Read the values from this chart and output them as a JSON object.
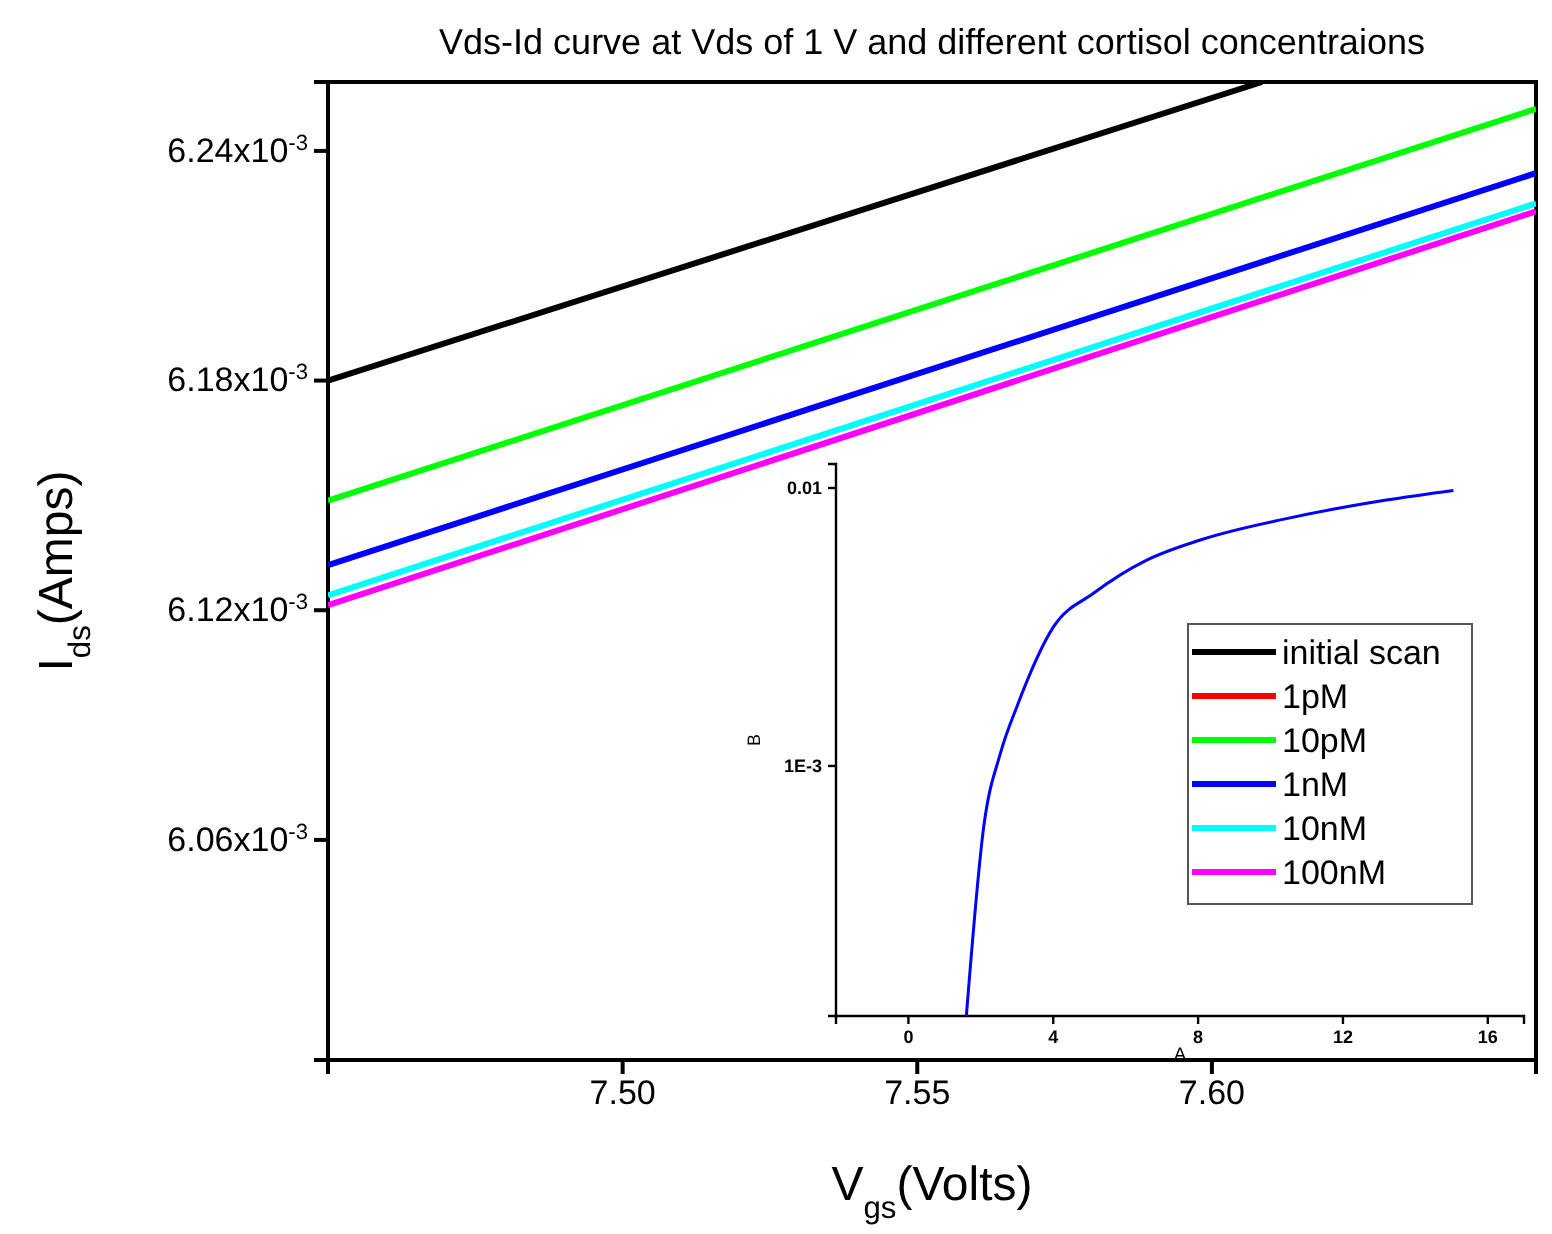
{
  "chart_data": [
    {
      "type": "line",
      "title": "Vds-Id curve at Vds of 1 V and different cortisol concentraions",
      "xlabel": "V$_{gs}$(Volts)",
      "ylabel": "I$_{ds}$(Amps)",
      "x": [
        7.45,
        7.655
      ],
      "xlim": [
        7.45,
        7.655
      ],
      "xticks": [
        {
          "value": 7.5,
          "label": "7.50"
        },
        {
          "value": 7.55,
          "label": "7.55"
        },
        {
          "value": 7.6,
          "label": "7.60"
        }
      ],
      "ylim": [
        0.0060025,
        0.006258
      ],
      "yticks": [
        {
          "value": 0.00606,
          "label": "6.06x10$^{-3}$"
        },
        {
          "value": 0.00612,
          "label": "6.12x10$^{-3}$"
        },
        {
          "value": 0.00618,
          "label": "6.18x10$^{-3}$"
        },
        {
          "value": 0.00624,
          "label": "6.24x10$^{-3}$"
        }
      ],
      "grid": false,
      "legend": false,
      "series": [
        {
          "color": "#000000",
          "x": [
            7.45,
            7.6085
          ],
          "values": [
            0.00618,
            0.006258
          ]
        },
        {
          "color": "#00ff00",
          "values": [
            0.0061486,
            0.006251
          ]
        },
        {
          "color": "#0000ff",
          "values": [
            0.0061318,
            0.0062342
          ]
        },
        {
          "color": "#00ffff",
          "values": [
            0.0061239,
            0.0062263
          ]
        },
        {
          "color": "#ff00ff",
          "values": [
            0.0061213,
            0.0062242
          ]
        }
      ]
    },
    {
      "type": "line",
      "xlabel": "A",
      "ylabel": "B",
      "log": "y",
      "x": [
        1.6,
        2.08,
        2.54,
        3.0,
        4.01,
        5.11,
        6.58,
        8.06,
        10.44,
        13.2,
        15.05
      ],
      "xlim": [
        -2,
        17
      ],
      "xticks": [
        0,
        4,
        8,
        12,
        16
      ],
      "ylim": [
        0.000126,
        0.0122
      ],
      "yticks": [
        {
          "value": 0.001,
          "label": "1E-3"
        },
        0.01
      ],
      "grid": false,
      "legend": "right",
      "series": [
        {
          "name": "initial scan",
          "color": "#000000",
          "values": [
            null,
            null,
            null,
            null,
            null,
            null,
            null,
            null,
            null,
            null,
            null
          ]
        },
        {
          "name": "1pM",
          "color": "#ff0000",
          "values": [
            null,
            null,
            null,
            null,
            null,
            null,
            null,
            null,
            null,
            null,
            null
          ]
        },
        {
          "name": "10pM",
          "color": "#00ff00",
          "values": [
            null,
            null,
            null,
            null,
            null,
            null,
            null,
            null,
            null,
            null,
            null
          ]
        },
        {
          "name": "1nM",
          "color": "#0000ff",
          "values": [
            0.000126,
            0.000605,
            0.00111,
            0.00164,
            0.00317,
            0.00418,
            0.0055,
            0.0065,
            0.00776,
            0.00905,
            0.0098
          ]
        },
        {
          "name": "10nM",
          "color": "#00ffff",
          "values": [
            null,
            null,
            null,
            null,
            null,
            null,
            null,
            null,
            null,
            null,
            null
          ]
        },
        {
          "name": "100nM",
          "color": "#ff00ff",
          "values": [
            null,
            null,
            null,
            null,
            null,
            null,
            null,
            null,
            null,
            null,
            null
          ]
        }
      ]
    }
  ]
}
